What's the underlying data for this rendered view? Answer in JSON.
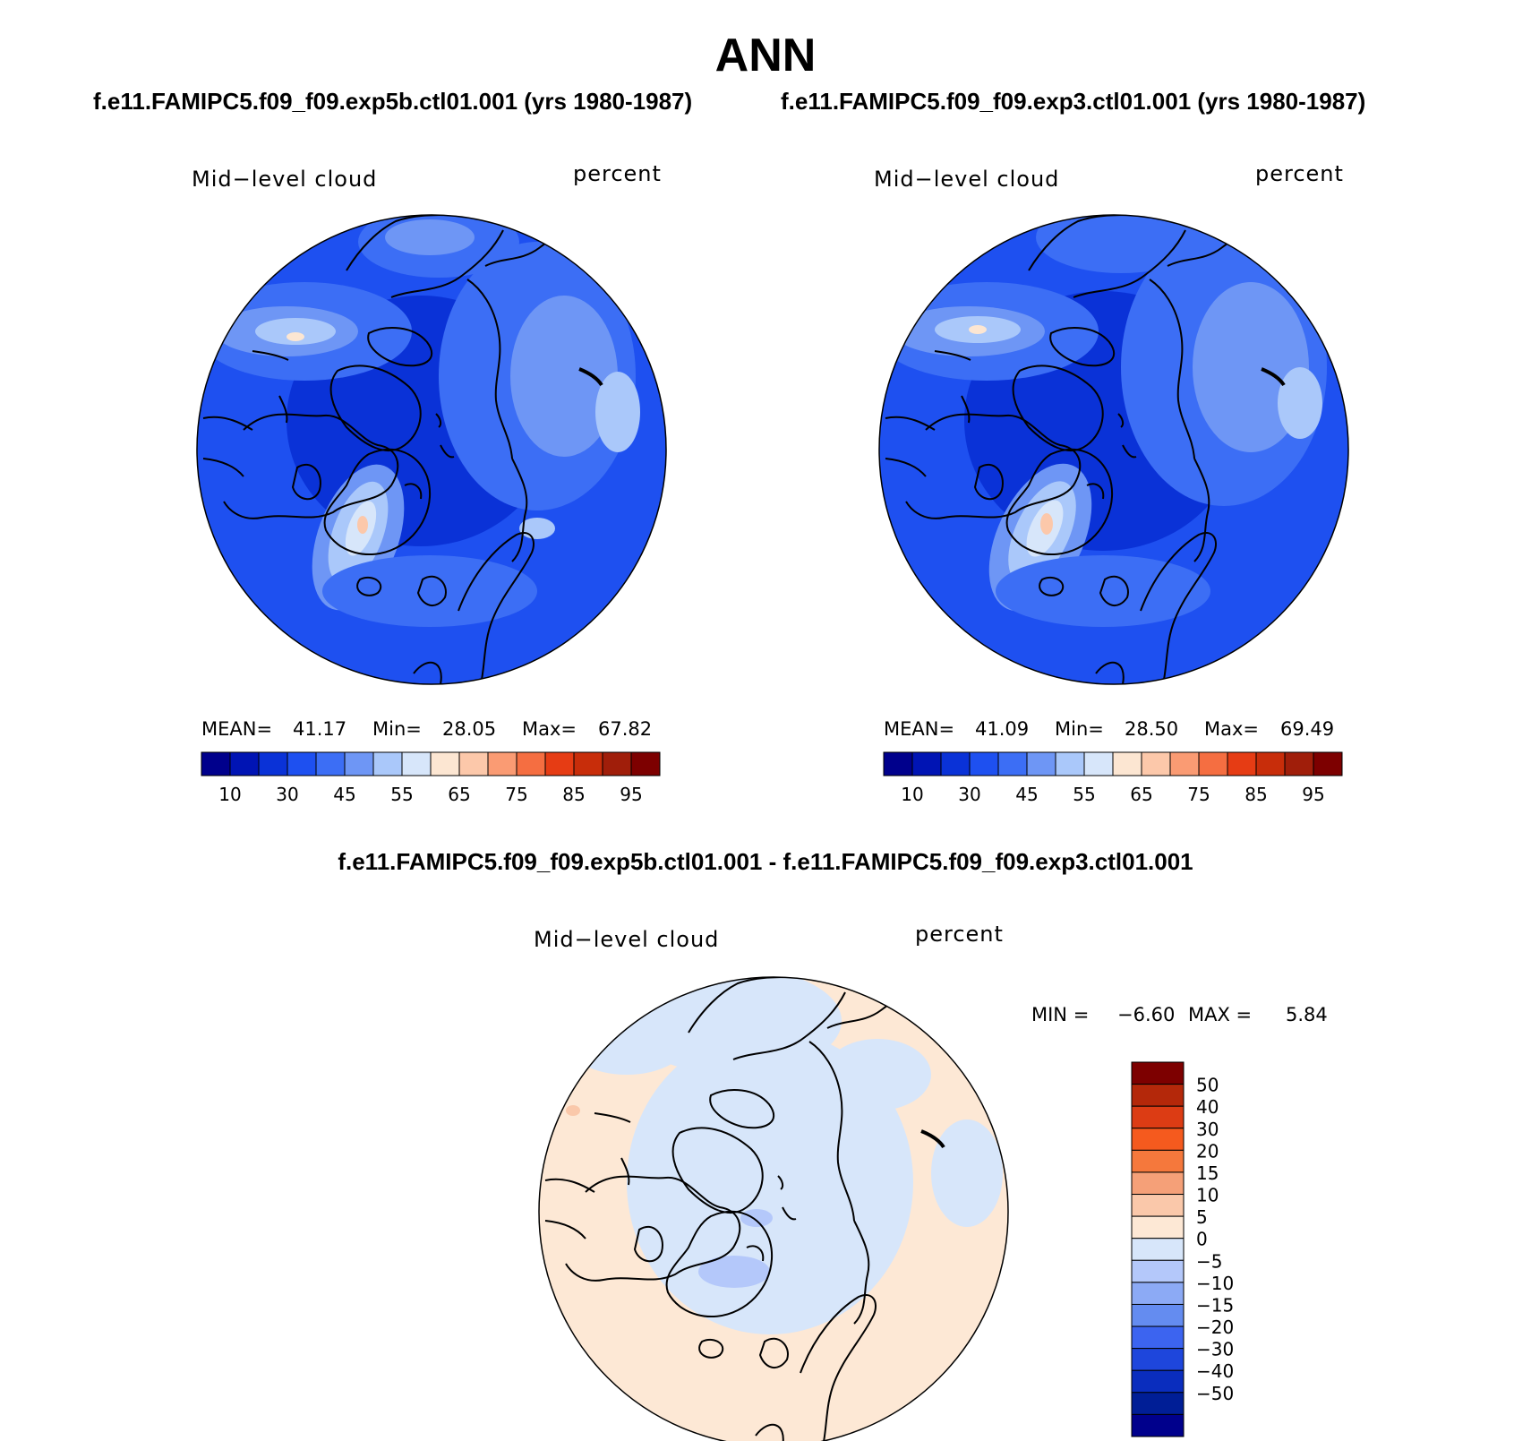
{
  "title": "ANN",
  "panels": [
    {
      "case_title": "f.e11.FAMIPC5.f09_f09.exp5b.ctl01.001 (yrs 1980-1987)",
      "variable": "Mid−level cloud",
      "units": "percent",
      "stats": {
        "mean_label": "MEAN=",
        "mean": "41.17",
        "min_label": "Min=",
        "min": "28.05",
        "max_label": "Max=",
        "max": "67.82"
      }
    },
    {
      "case_title": "f.e11.FAMIPC5.f09_f09.exp3.ctl01.001 (yrs 1980-1987)",
      "variable": "Mid−level cloud",
      "units": "percent",
      "stats": {
        "mean_label": "MEAN=",
        "mean": "41.09",
        "min_label": "Min=",
        "min": "28.50",
        "max_label": "Max=",
        "max": "69.49"
      }
    }
  ],
  "colorbar": {
    "colors": [
      "#00008c",
      "#0014b4",
      "#0a32d7",
      "#1e50f0",
      "#3c6ef5",
      "#6e96f5",
      "#aac8fa",
      "#d7e6fa",
      "#fce6d2",
      "#fcc8aa",
      "#fa9b73",
      "#f56e41",
      "#e63c14",
      "#c82d0a",
      "#a01e0a",
      "#7d0000"
    ],
    "tick_labels": [
      "10",
      "30",
      "45",
      "55",
      "65",
      "75",
      "85",
      "95"
    ]
  },
  "difference": {
    "title": "f.e11.FAMIPC5.f09_f09.exp5b.ctl01.001 - f.e11.FAMIPC5.f09_f09.exp3.ctl01.001",
    "variable": "Mid−level cloud",
    "units": "percent",
    "stats": {
      "min_label": "MIN =",
      "min": "−6.60",
      "max_label": "MAX =",
      "max": "5.84"
    },
    "colorbar": {
      "colors_top_to_bottom": [
        "#7d0000",
        "#b4280a",
        "#dc3c14",
        "#f55a1e",
        "#f5783c",
        "#f5a078",
        "#fac8aa",
        "#fde8d5",
        "#d7e6fa",
        "#b4c8fa",
        "#8caaf5",
        "#648cf0",
        "#3c64f0",
        "#1e46dc",
        "#0a2dbe",
        "#001e96",
        "#00008c"
      ],
      "labels": [
        "50",
        "40",
        "30",
        "20",
        "15",
        "10",
        "5",
        "0",
        "−5",
        "−10",
        "−15",
        "−20",
        "−30",
        "−40",
        "−50"
      ]
    }
  }
}
